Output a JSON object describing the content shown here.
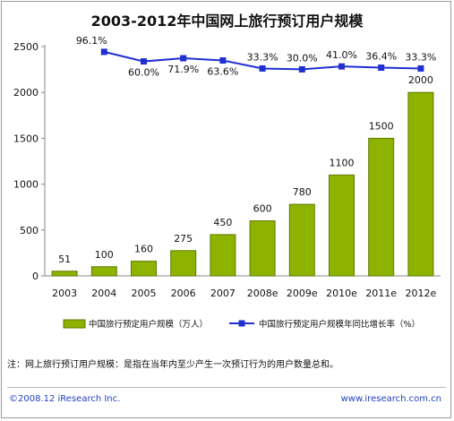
{
  "chart_data": {
    "type": "bar",
    "title": "2003-2012年中国网上旅行预订用户规模",
    "categories": [
      "2003",
      "2004",
      "2005",
      "2006",
      "2007",
      "2008e",
      "2009e",
      "2010e",
      "2011e",
      "2012e"
    ],
    "series": [
      {
        "name": "中国旅行预定用户规模（万人）",
        "type": "bar",
        "color": "#8db300",
        "values": [
          51,
          100,
          160,
          275,
          450,
          600,
          780,
          1100,
          1500,
          2000
        ]
      },
      {
        "name": "中国旅行预定用户规模年同比增长率（%）",
        "type": "line",
        "color": "#1f2fd0",
        "values": [
          null,
          96.1,
          60.0,
          71.9,
          63.6,
          33.3,
          30.0,
          41.0,
          36.4,
          33.3
        ],
        "labels": [
          "",
          "96.1%",
          "60.0%",
          "71.9%",
          "63.6%",
          "33.3%",
          "30.0%",
          "41.0%",
          "36.4%",
          "33.3%"
        ]
      }
    ],
    "y_ticks": [
      0,
      500,
      1000,
      1500,
      2000,
      2500
    ],
    "ylim": [
      0,
      2500
    ],
    "line_ylim": [
      -750,
      116
    ],
    "grid": false,
    "legend_position": "bottom"
  },
  "note": "注：网上旅行预订用户规模：是指在当年内至少产生一次预订行为的用户数量总和。",
  "footer": {
    "copyright": "©2008.12 iResearch Inc.",
    "website": "www.iresearch.com.cn"
  }
}
